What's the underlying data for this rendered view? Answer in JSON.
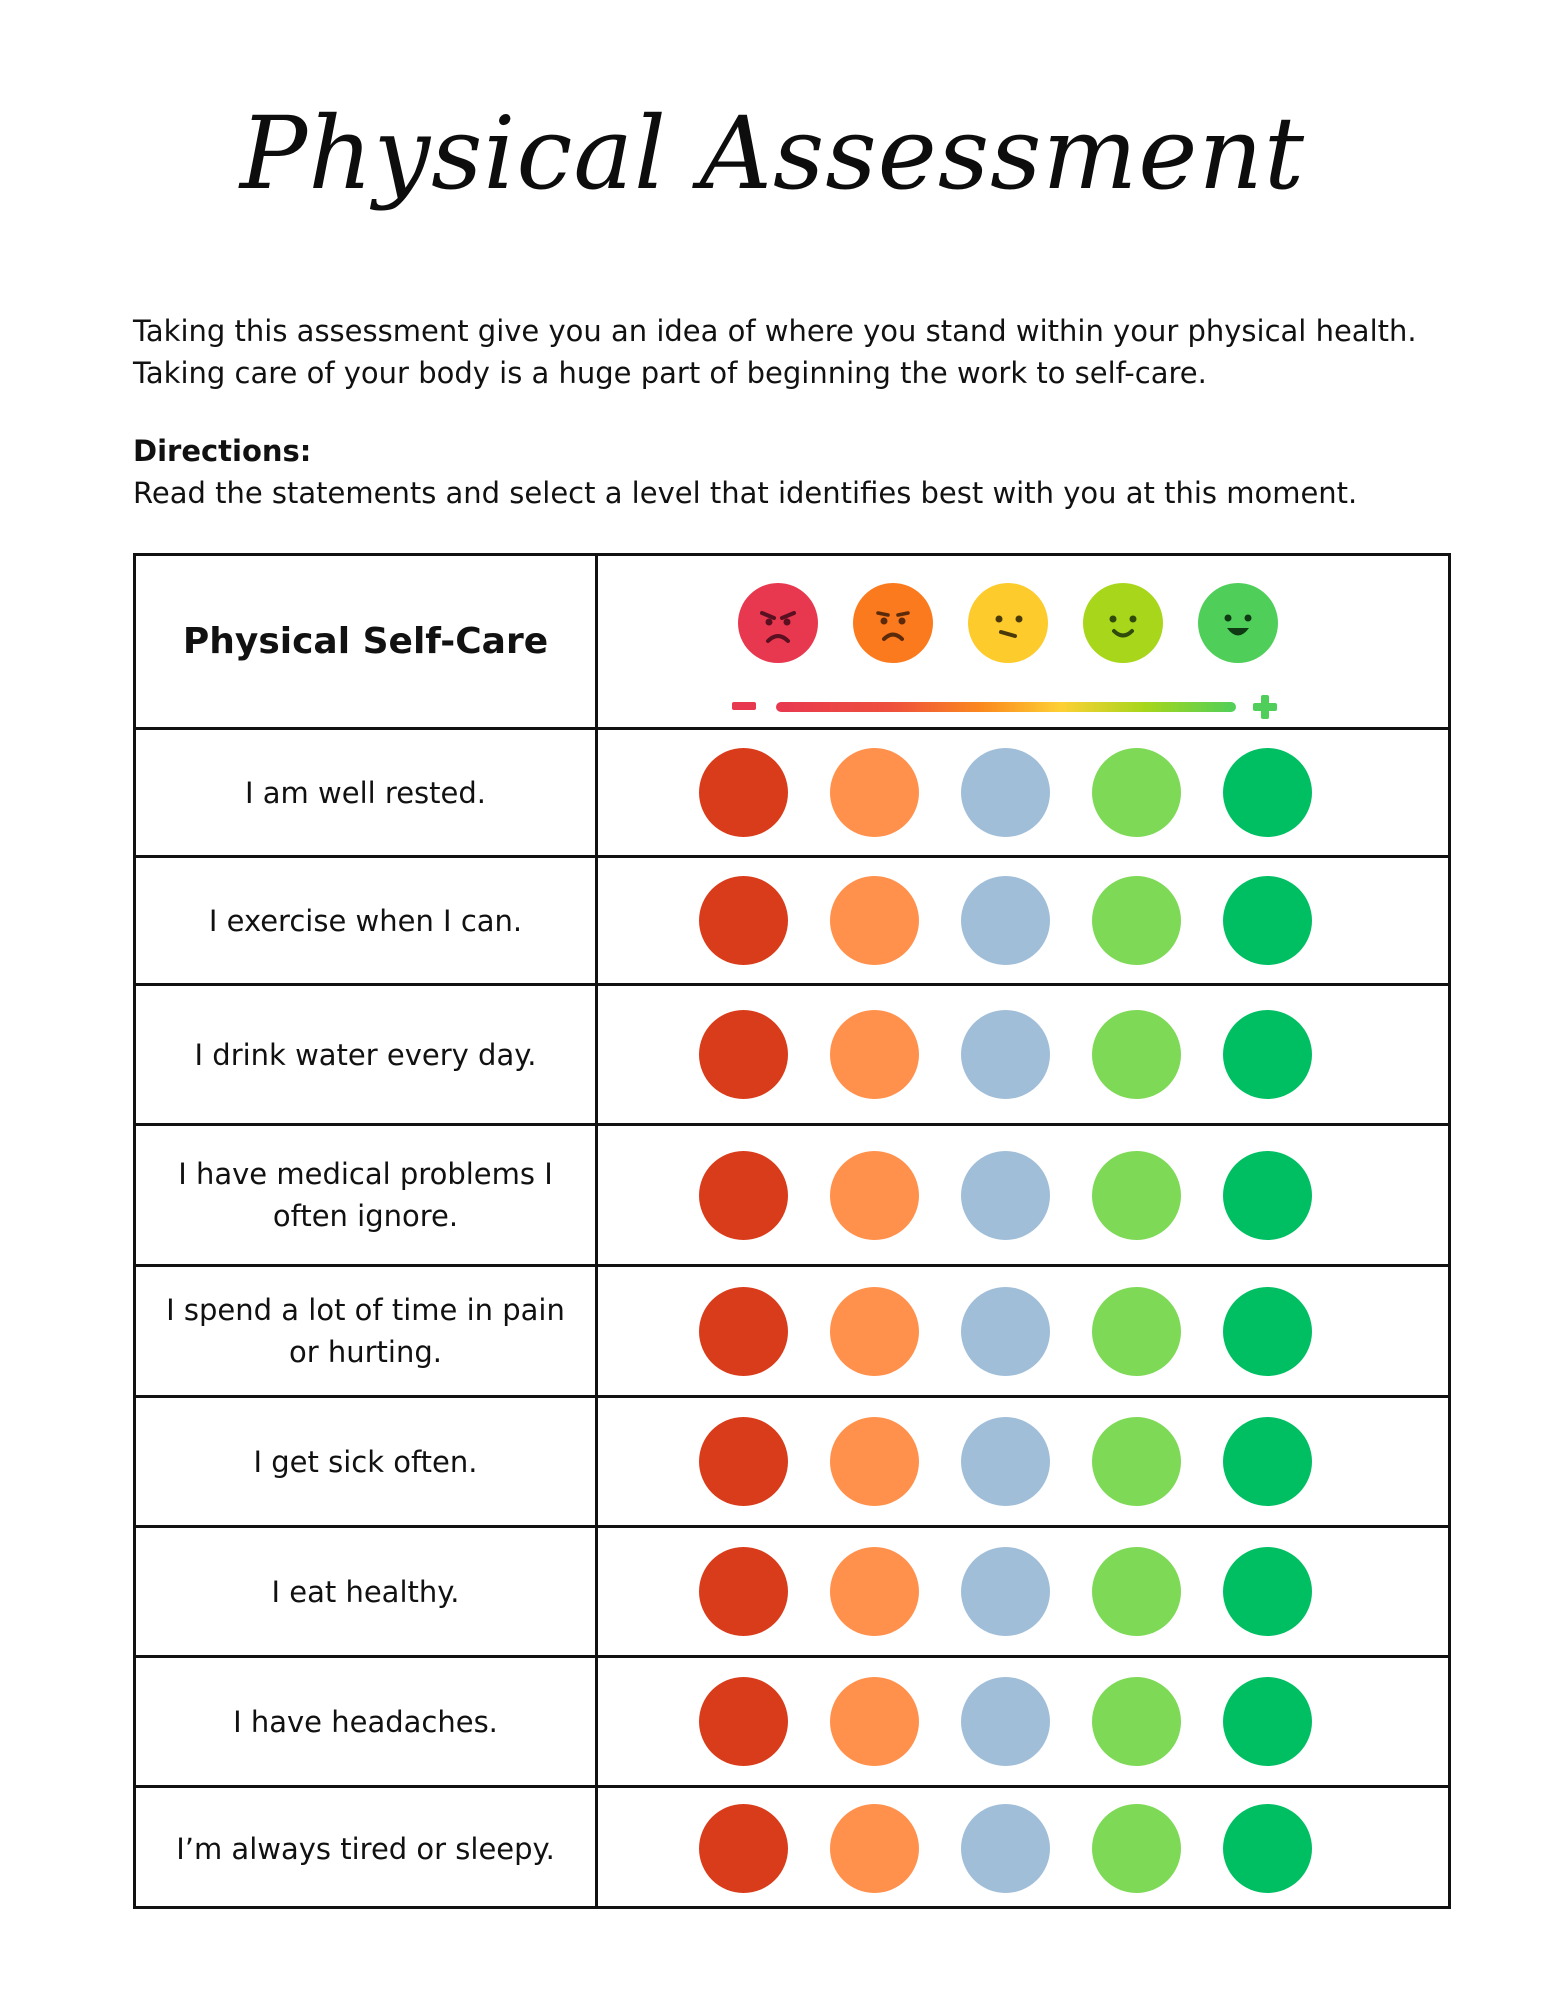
{
  "title": "Physical Assessment",
  "intro": "Taking this assessment give you an idea of where you stand within your physical health. Taking care of your body is a huge part of beginning the work to self-care.",
  "directions": {
    "title": "Directions:",
    "text": "Read the statements and select a level that identifies best with you at this moment."
  },
  "table": {
    "header_label": "Physical Self-Care",
    "faces": [
      {
        "mood": "angry",
        "color": "#e8384f"
      },
      {
        "mood": "sad",
        "color": "#fb7a1e"
      },
      {
        "mood": "meh",
        "color": "#fdcb2c"
      },
      {
        "mood": "smile",
        "color": "#a7d61b"
      },
      {
        "mood": "happy",
        "color": "#4fcf5a"
      }
    ],
    "scale_minus": "−",
    "scale_plus": "+",
    "option_colors": [
      "#d93c1b",
      "#ff914d",
      "#a1bed9",
      "#7ed957",
      "#00bf63"
    ],
    "rows": [
      {
        "statement": "I am well rested."
      },
      {
        "statement": "I exercise when I can."
      },
      {
        "statement": "I drink water every day."
      },
      {
        "statement": "I have medical problems I often ignore."
      },
      {
        "statement": "I spend a lot of time in pain or hurting."
      },
      {
        "statement": "I get sick often."
      },
      {
        "statement": "I eat healthy."
      },
      {
        "statement": "I have headaches."
      },
      {
        "statement": "I’m always tired or sleepy."
      }
    ]
  }
}
